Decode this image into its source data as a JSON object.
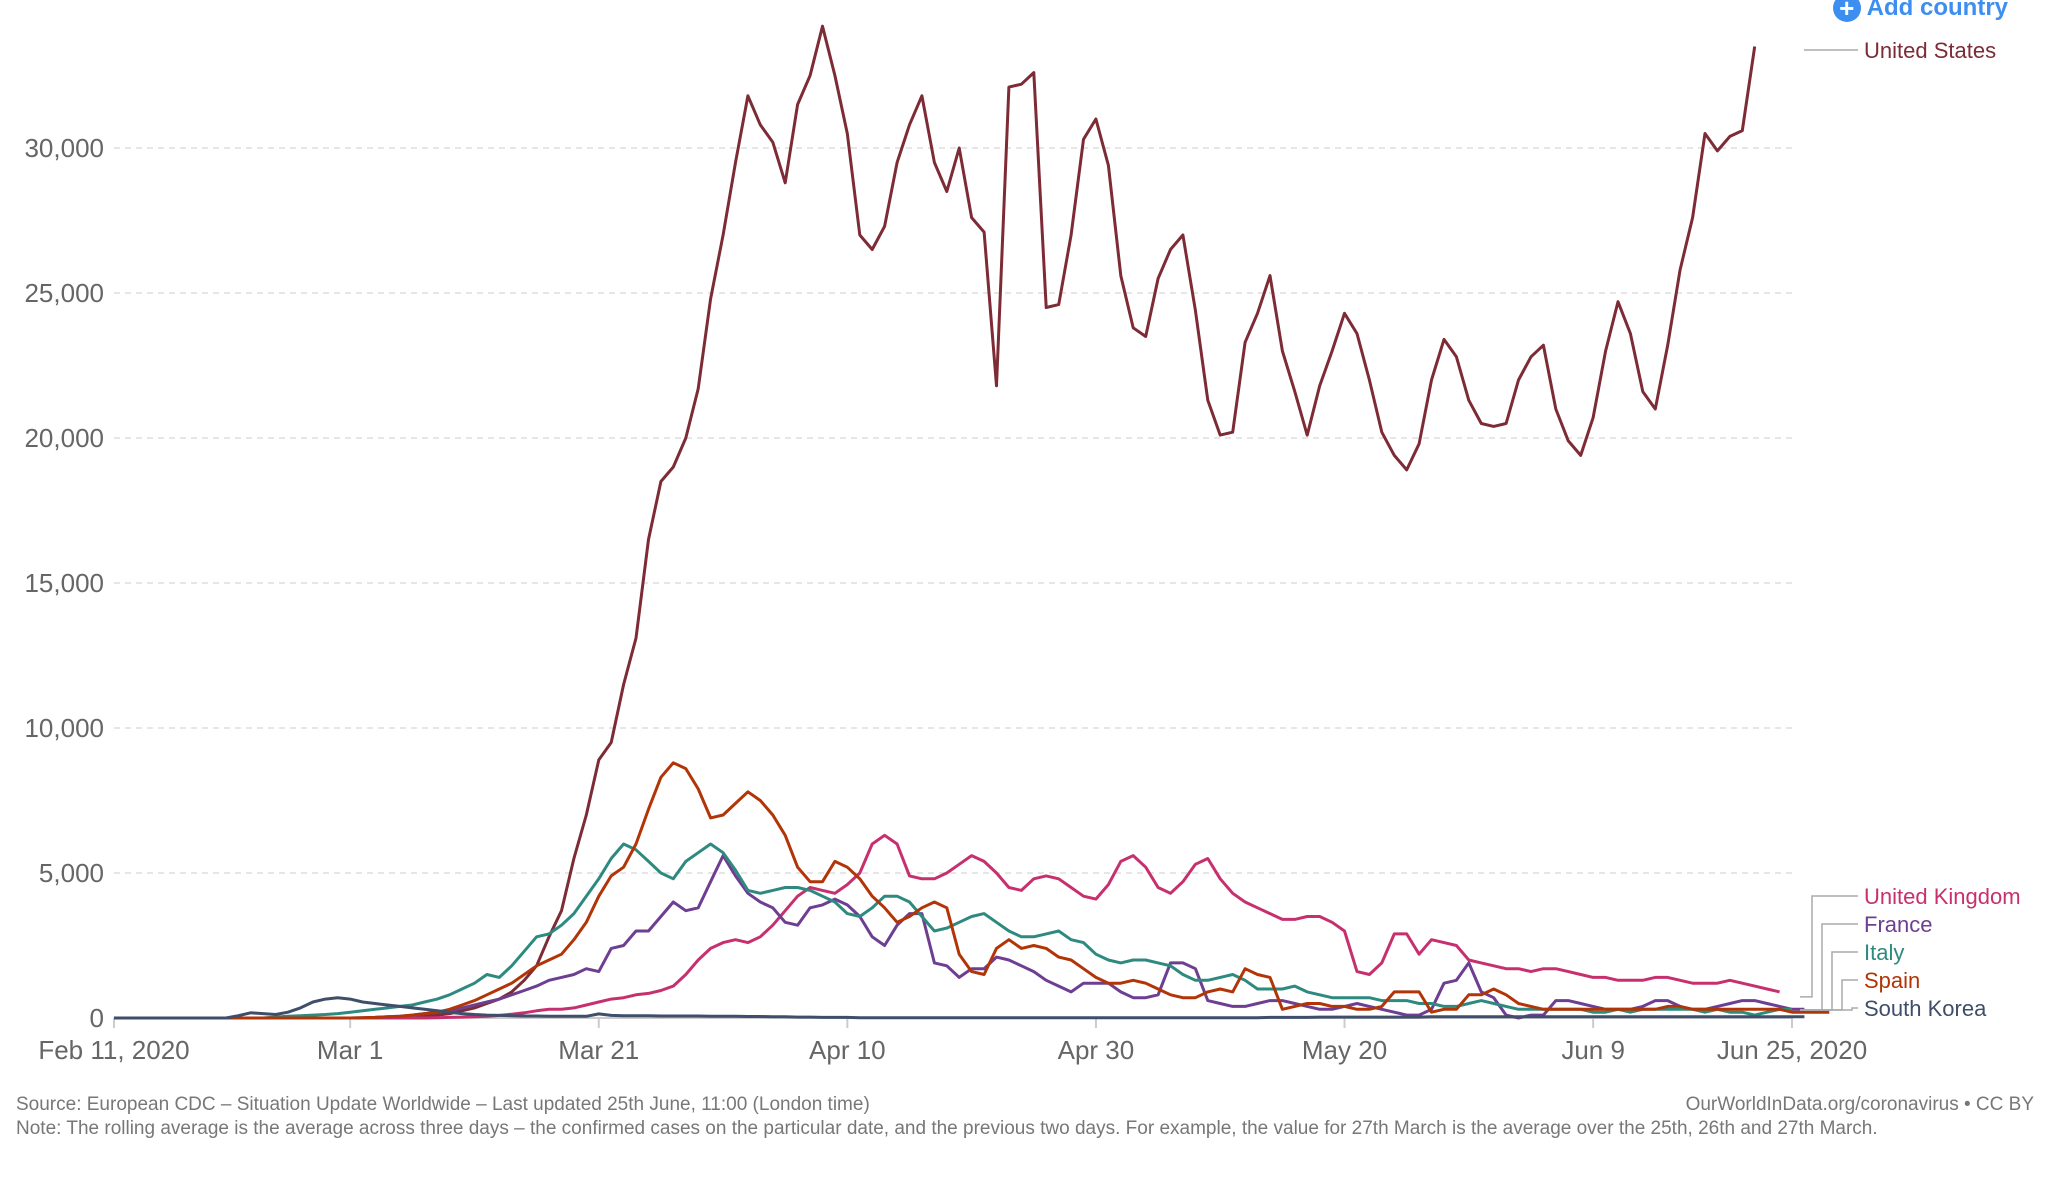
{
  "add_country": {
    "label": "Add country",
    "icon": "plus-circle-icon"
  },
  "footer": {
    "source": "Source: European CDC – Situation Update Worldwide – Last updated 25th June, 11:00 (London time)",
    "note": "Note: The rolling average is the average across three days – the confirmed cases on the particular date, and the previous two days. For example, the value for 27th March is the average over the 25th, 26th and 27th March.",
    "credit": "OurWorldInData.org/coronavirus • CC BY"
  },
  "chart_data": {
    "type": "line",
    "title": "",
    "xlabel": "",
    "ylabel": "",
    "x_start": "2020-02-11",
    "x_end": "2020-06-25",
    "x_ticks": [
      "Feb 11, 2020",
      "Mar 1",
      "Mar 21",
      "Apr 10",
      "Apr 30",
      "May 20",
      "Jun 9",
      "Jun 25, 2020"
    ],
    "x_tick_days": [
      0,
      19,
      39,
      59,
      79,
      99,
      119,
      135
    ],
    "y_ticks": [
      "0",
      "5,000",
      "10,000",
      "15,000",
      "20,000",
      "25,000",
      "30,000"
    ],
    "y_tick_values": [
      0,
      5000,
      10000,
      15000,
      20000,
      25000,
      30000
    ],
    "ylim": [
      0,
      34500
    ],
    "grid": true,
    "legend_placement": "right (inline labels)",
    "series": [
      {
        "name": "United States",
        "color": "#7d2b35",
        "values": [
          0,
          0,
          0,
          0,
          0,
          0,
          0,
          0,
          0,
          0,
          0,
          0,
          0,
          0,
          0,
          0,
          0,
          0,
          0,
          0,
          0,
          0,
          0,
          0,
          0,
          50,
          100,
          150,
          250,
          350,
          500,
          650,
          900,
          1300,
          1800,
          2800,
          3700,
          5500,
          7000,
          8900,
          9500,
          11500,
          13100,
          16500,
          18500,
          19000,
          20000,
          21700,
          24800,
          27000,
          29500,
          31800,
          30800,
          30200,
          28800,
          31500,
          32500,
          34200,
          32500,
          30500,
          27000,
          26500,
          27300,
          29500,
          30800,
          31800,
          29500,
          28500,
          30000,
          27600,
          27100,
          21800,
          32100,
          32200,
          32600,
          24500,
          24600,
          27000,
          30300,
          31000,
          29400,
          25600,
          23800,
          23500,
          25500,
          26500,
          27000,
          24400,
          21300,
          20100,
          20200,
          23300,
          24300,
          25600,
          23000,
          21600,
          20100,
          21800,
          23000,
          24300,
          23600,
          22000,
          20200,
          19400,
          18900,
          19800,
          22000,
          23400,
          22800,
          21300,
          20500,
          20400,
          20500,
          22000,
          22800,
          23200,
          21000,
          19900,
          19400,
          20700,
          23000,
          24700,
          23600,
          21600,
          21000,
          23200,
          25800,
          27600,
          30500,
          29900,
          30400,
          30600,
          33500
        ]
      },
      {
        "name": "United Kingdom",
        "color": "#c7306e",
        "values": [
          0,
          0,
          0,
          0,
          0,
          0,
          0,
          0,
          0,
          0,
          0,
          0,
          0,
          0,
          0,
          0,
          0,
          0,
          0,
          0,
          0,
          0,
          0,
          0,
          0,
          0,
          10,
          20,
          30,
          40,
          60,
          90,
          130,
          180,
          250,
          300,
          300,
          350,
          450,
          550,
          650,
          700,
          800,
          850,
          950,
          1100,
          1500,
          2000,
          2400,
          2600,
          2700,
          2600,
          2800,
          3200,
          3700,
          4200,
          4500,
          4400,
          4300,
          4600,
          5000,
          6000,
          6300,
          6000,
          4900,
          4800,
          4800,
          5000,
          5300,
          5600,
          5400,
          5000,
          4500,
          4400,
          4800,
          4900,
          4800,
          4500,
          4200,
          4100,
          4600,
          5400,
          5600,
          5200,
          4500,
          4300,
          4700,
          5300,
          5500,
          4800,
          4300,
          4000,
          3800,
          3600,
          3400,
          3400,
          3500,
          3500,
          3300,
          3000,
          1600,
          1500,
          1900,
          2900,
          2900,
          2200,
          2700,
          2600,
          2500,
          2000,
          1900,
          1800,
          1700,
          1700,
          1600,
          1700,
          1700,
          1600,
          1500,
          1400,
          1400,
          1300,
          1300,
          1300,
          1400,
          1400,
          1300,
          1200,
          1200,
          1200,
          1300,
          1200,
          1100,
          1000,
          900
        ]
      },
      {
        "name": "France",
        "color": "#6d3e91",
        "values": [
          0,
          0,
          0,
          0,
          0,
          0,
          0,
          0,
          0,
          0,
          0,
          0,
          0,
          0,
          0,
          0,
          0,
          0,
          0,
          0,
          10,
          20,
          40,
          60,
          100,
          150,
          200,
          250,
          350,
          450,
          550,
          650,
          800,
          950,
          1100,
          1300,
          1400,
          1500,
          1700,
          1600,
          2400,
          2500,
          3000,
          3000,
          3500,
          4000,
          3700,
          3800,
          4700,
          5600,
          4900,
          4300,
          4000,
          3800,
          3300,
          3200,
          3800,
          3900,
          4100,
          3900,
          3500,
          2800,
          2500,
          3200,
          3600,
          3600,
          1900,
          1800,
          1400,
          1700,
          1700,
          2100,
          2000,
          1800,
          1600,
          1300,
          1100,
          900,
          1200,
          1200,
          1200,
          900,
          700,
          700,
          800,
          1900,
          1900,
          1700,
          600,
          500,
          400,
          400,
          500,
          600,
          600,
          500,
          400,
          300,
          300,
          400,
          500,
          400,
          300,
          200,
          100,
          100,
          300,
          1200,
          1300,
          1900,
          900,
          700,
          100,
          0,
          100,
          100,
          600,
          600,
          500,
          400,
          300,
          300,
          300,
          400,
          600,
          600,
          400,
          300,
          300,
          400,
          500,
          600,
          600,
          500,
          400,
          300,
          300
        ]
      },
      {
        "name": "Italy",
        "color": "#2e8a7f",
        "values": [
          0,
          0,
          0,
          0,
          0,
          0,
          0,
          0,
          0,
          0,
          0,
          0,
          0,
          30,
          60,
          80,
          100,
          120,
          150,
          200,
          250,
          300,
          350,
          400,
          450,
          550,
          650,
          800,
          1000,
          1200,
          1500,
          1400,
          1800,
          2300,
          2800,
          2900,
          3200,
          3600,
          4200,
          4800,
          5500,
          6000,
          5800,
          5400,
          5000,
          4800,
          5400,
          5700,
          6000,
          5700,
          5100,
          4400,
          4300,
          4400,
          4500,
          4500,
          4400,
          4200,
          4000,
          3600,
          3500,
          3800,
          4200,
          4200,
          4000,
          3500,
          3000,
          3100,
          3300,
          3500,
          3600,
          3300,
          3000,
          2800,
          2800,
          2900,
          3000,
          2700,
          2600,
          2200,
          2000,
          1900,
          2000,
          2000,
          1900,
          1800,
          1500,
          1300,
          1300,
          1400,
          1500,
          1300,
          1000,
          1000,
          1000,
          1100,
          900,
          800,
          700,
          700,
          700,
          700,
          600,
          600,
          600,
          500,
          500,
          400,
          400,
          500,
          600,
          500,
          400,
          300,
          300,
          300,
          300,
          300,
          300,
          200,
          200,
          300,
          200,
          300,
          300,
          300,
          300,
          300,
          200,
          300,
          200,
          200,
          100,
          200,
          300,
          300
        ]
      },
      {
        "name": "Spain",
        "color": "#b13507",
        "values": [
          0,
          0,
          0,
          0,
          0,
          0,
          0,
          0,
          0,
          0,
          0,
          0,
          0,
          0,
          0,
          0,
          0,
          0,
          0,
          0,
          10,
          20,
          40,
          60,
          100,
          150,
          200,
          300,
          450,
          600,
          800,
          1000,
          1200,
          1500,
          1800,
          2000,
          2200,
          2700,
          3300,
          4200,
          4900,
          5200,
          6000,
          7200,
          8300,
          8800,
          8600,
          7900,
          6900,
          7000,
          7400,
          7800,
          7500,
          7000,
          6300,
          5200,
          4700,
          4700,
          5400,
          5200,
          4800,
          4200,
          3800,
          3300,
          3500,
          3800,
          4000,
          3800,
          2200,
          1600,
          1500,
          2400,
          2700,
          2400,
          2500,
          2400,
          2100,
          2000,
          1700,
          1400,
          1200,
          1200,
          1300,
          1200,
          1000,
          800,
          700,
          700,
          900,
          1000,
          900,
          1700,
          1500,
          1400,
          300,
          400,
          500,
          500,
          400,
          400,
          300,
          300,
          400,
          900,
          900,
          900,
          200,
          300,
          300,
          800,
          800,
          1000,
          800,
          500,
          400,
          300,
          300,
          300,
          300,
          300,
          300,
          300,
          300,
          300,
          300,
          400,
          400,
          300,
          300,
          300,
          300,
          300,
          300,
          300,
          300,
          200,
          200,
          200,
          200
        ]
      },
      {
        "name": "South Korea",
        "color": "#3f4e6a",
        "values": [
          0,
          0,
          0,
          0,
          0,
          0,
          0,
          0,
          0,
          0,
          80,
          180,
          150,
          120,
          200,
          350,
          550,
          650,
          700,
          650,
          550,
          500,
          450,
          400,
          350,
          300,
          250,
          200,
          150,
          120,
          100,
          90,
          80,
          70,
          70,
          60,
          60,
          60,
          60,
          140,
          90,
          80,
          80,
          80,
          70,
          70,
          70,
          70,
          60,
          60,
          60,
          50,
          50,
          40,
          40,
          30,
          30,
          20,
          20,
          20,
          10,
          10,
          10,
          10,
          10,
          10,
          10,
          10,
          10,
          10,
          10,
          10,
          10,
          10,
          10,
          10,
          10,
          10,
          10,
          10,
          10,
          10,
          10,
          10,
          10,
          10,
          10,
          10,
          10,
          10,
          10,
          10,
          10,
          20,
          20,
          20,
          20,
          30,
          30,
          30,
          30,
          30,
          30,
          30,
          30,
          30,
          40,
          40,
          40,
          40,
          40,
          40,
          40,
          40,
          40,
          40,
          40,
          40,
          40,
          40,
          40,
          40,
          40,
          40,
          40,
          40,
          40,
          40,
          40,
          40,
          40,
          40,
          40,
          40,
          40,
          40,
          40
        ]
      }
    ]
  }
}
